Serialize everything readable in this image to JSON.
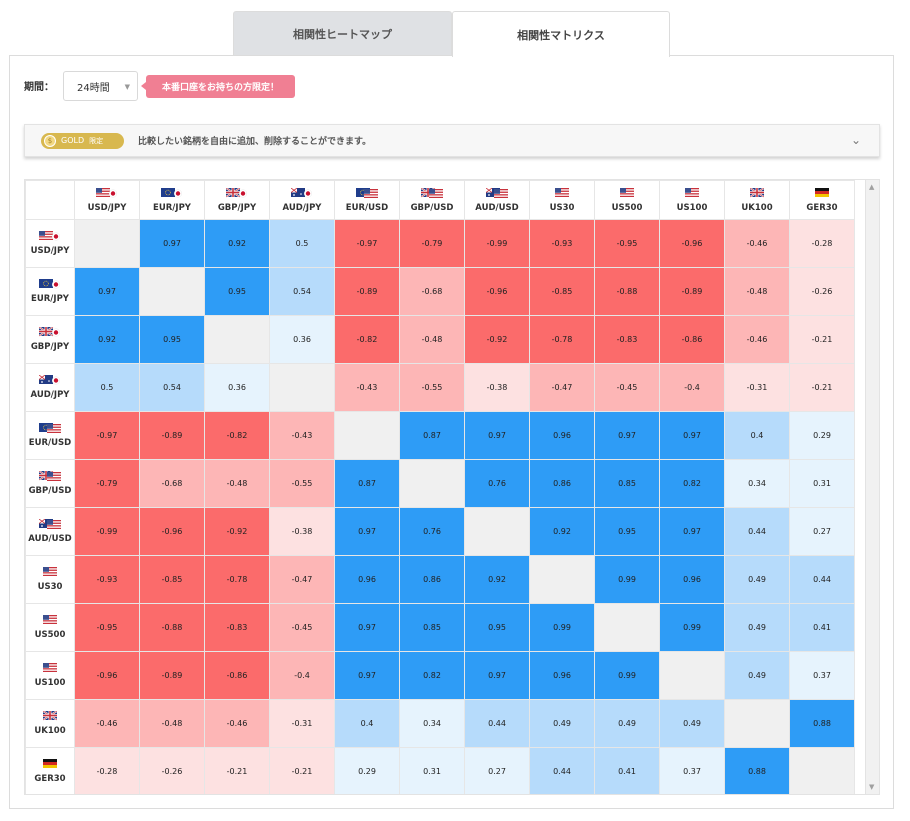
{
  "tabs": [
    {
      "label": "相関性ヒートマップ",
      "active": false
    },
    {
      "label": "相関性マトリクス",
      "active": true
    }
  ],
  "period": {
    "label": "期間：",
    "value": "24時間"
  },
  "promo": {
    "label": "本番口座をお持ちの方限定！"
  },
  "gold_bar": {
    "badge": "GOLD",
    "badge_sub": "限定",
    "text": "比較したい銘柄を自由に追加、削除することができます。"
  },
  "colors": {
    "strong_pos": "#2e9cf6",
    "mid_pos": "#b6dbfb",
    "weak_pos": "#e6f3fd",
    "strong_neg": "#fb6b6b",
    "mid_neg": "#fdb6b6",
    "weak_neg": "#fde1e1",
    "diagonal": "#f0f0f0"
  },
  "matrix": {
    "symbols": [
      {
        "label": "USD/JPY",
        "flag": "us-jp"
      },
      {
        "label": "EUR/JPY",
        "flag": "eu-jp"
      },
      {
        "label": "GBP/JPY",
        "flag": "gb-jp"
      },
      {
        "label": "AUD/JPY",
        "flag": "au-jp"
      },
      {
        "label": "EUR/USD",
        "flag": "eu-us"
      },
      {
        "label": "GBP/USD",
        "flag": "gb-us"
      },
      {
        "label": "AUD/USD",
        "flag": "au-us"
      },
      {
        "label": "US30",
        "flag": "us"
      },
      {
        "label": "US500",
        "flag": "us"
      },
      {
        "label": "US100",
        "flag": "us"
      },
      {
        "label": "UK100",
        "flag": "gb"
      },
      {
        "label": "GER30",
        "flag": "de"
      }
    ],
    "values": [
      [
        null,
        "0.97",
        "0.92",
        "0.5",
        "-0.97",
        "-0.79",
        "-0.99",
        "-0.93",
        "-0.95",
        "-0.96",
        "-0.46",
        "-0.28"
      ],
      [
        "0.97",
        null,
        "0.95",
        "0.54",
        "-0.89",
        "-0.68",
        "-0.96",
        "-0.85",
        "-0.88",
        "-0.89",
        "-0.48",
        "-0.26"
      ],
      [
        "0.92",
        "0.95",
        null,
        "0.36",
        "-0.82",
        "-0.48",
        "-0.92",
        "-0.78",
        "-0.83",
        "-0.86",
        "-0.46",
        "-0.21"
      ],
      [
        "0.5",
        "0.54",
        "0.36",
        null,
        "-0.43",
        "-0.55",
        "-0.38",
        "-0.47",
        "-0.45",
        "-0.4",
        "-0.31",
        "-0.21"
      ],
      [
        "-0.97",
        "-0.89",
        "-0.82",
        "-0.43",
        null,
        "0.87",
        "0.97",
        "0.96",
        "0.97",
        "0.97",
        "0.4",
        "0.29"
      ],
      [
        "-0.79",
        "-0.68",
        "-0.48",
        "-0.55",
        "0.87",
        null,
        "0.76",
        "0.86",
        "0.85",
        "0.82",
        "0.34",
        "0.31"
      ],
      [
        "-0.99",
        "-0.96",
        "-0.92",
        "-0.38",
        "0.97",
        "0.76",
        null,
        "0.92",
        "0.95",
        "0.97",
        "0.44",
        "0.27"
      ],
      [
        "-0.93",
        "-0.85",
        "-0.78",
        "-0.47",
        "0.96",
        "0.86",
        "0.92",
        null,
        "0.99",
        "0.96",
        "0.49",
        "0.44"
      ],
      [
        "-0.95",
        "-0.88",
        "-0.83",
        "-0.45",
        "0.97",
        "0.85",
        "0.95",
        "0.99",
        null,
        "0.99",
        "0.49",
        "0.41"
      ],
      [
        "-0.96",
        "-0.89",
        "-0.86",
        "-0.4",
        "0.97",
        "0.82",
        "0.97",
        "0.96",
        "0.99",
        null,
        "0.49",
        "0.37"
      ],
      [
        "-0.46",
        "-0.48",
        "-0.46",
        "-0.31",
        "0.4",
        "0.34",
        "0.44",
        "0.49",
        "0.49",
        "0.49",
        null,
        "0.88"
      ],
      [
        "-0.28",
        "-0.26",
        "-0.21",
        "-0.21",
        "0.29",
        "0.31",
        "0.27",
        "0.44",
        "0.41",
        "0.37",
        "0.88",
        null
      ]
    ]
  }
}
